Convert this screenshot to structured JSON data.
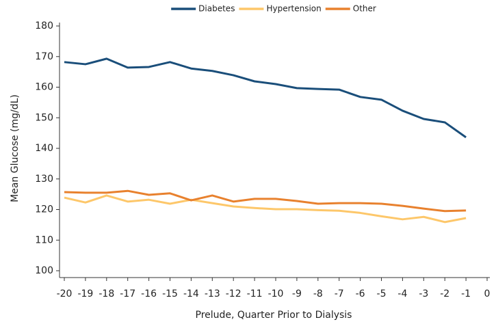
{
  "chart_data": {
    "type": "line",
    "x_label": "Prelude, Quarter Prior to Dialysis",
    "y_label": "Mean Glucose (mg/dL)",
    "x": [
      -20,
      -19,
      -18,
      -17,
      -16,
      -15,
      -14,
      -13,
      -12,
      -11,
      -10,
      -9,
      -8,
      -7,
      -6,
      -5,
      -4,
      -3,
      -2,
      -1
    ],
    "series": [
      {
        "name": "Diabetes",
        "color": "#1a4e7a",
        "values": [
          168.2,
          167.5,
          169.3,
          166.4,
          166.6,
          168.2,
          166.1,
          165.3,
          163.9,
          161.9,
          161.0,
          159.7,
          159.4,
          159.2,
          156.8,
          155.9,
          152.3,
          149.6,
          148.5,
          143.6
        ]
      },
      {
        "name": "Hypertension",
        "color": "#fdc76a",
        "values": [
          123.9,
          122.3,
          124.6,
          122.6,
          123.2,
          121.9,
          123.2,
          122.1,
          121.0,
          120.5,
          120.1,
          120.1,
          119.8,
          119.6,
          118.9,
          117.8,
          116.8,
          117.6,
          115.9,
          117.2
        ]
      },
      {
        "name": "Other",
        "color": "#e8812e",
        "values": [
          125.7,
          125.5,
          125.5,
          126.1,
          124.8,
          125.3,
          123.0,
          124.6,
          122.6,
          123.5,
          123.5,
          122.8,
          121.9,
          122.1,
          122.1,
          121.9,
          121.2,
          120.3,
          119.5,
          119.7
        ]
      }
    ],
    "xlim": [
      -20,
      0
    ],
    "xticks": [
      -20,
      -19,
      -18,
      -17,
      -16,
      -15,
      -14,
      -13,
      -12,
      -11,
      -10,
      -9,
      -8,
      -7,
      -6,
      -5,
      -4,
      -3,
      -2,
      -1,
      0
    ],
    "ylim": [
      100,
      180
    ],
    "yticks": [
      100,
      110,
      120,
      130,
      140,
      150,
      160,
      170,
      180
    ],
    "legend": "top",
    "grid": false
  }
}
